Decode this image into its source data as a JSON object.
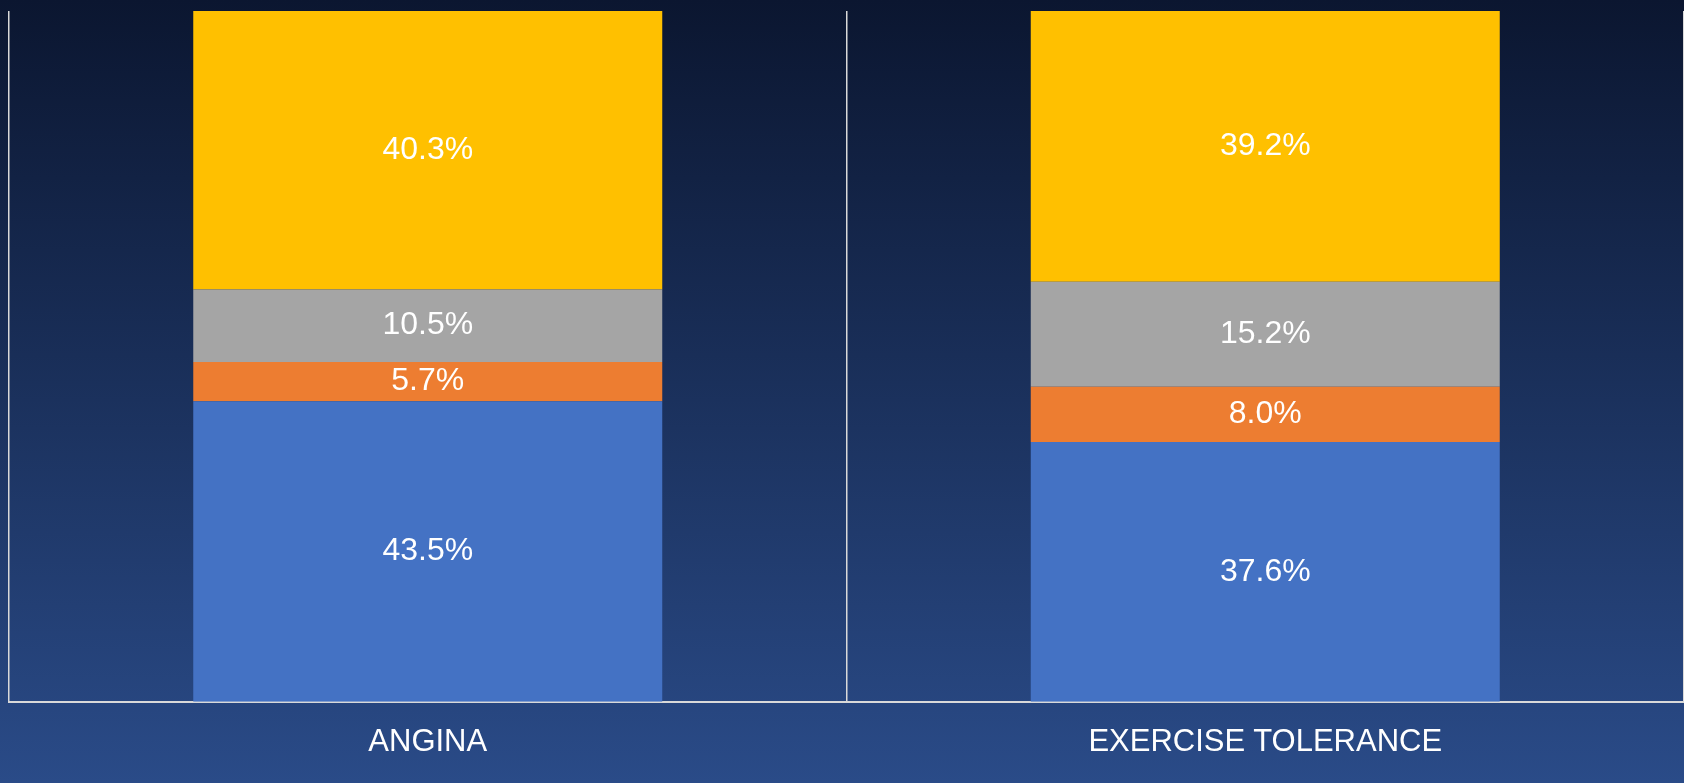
{
  "chart_data": {
    "type": "bar",
    "stacked": true,
    "categories": [
      "ANGINA",
      "EXERCISE TOLERANCE"
    ],
    "ylim": [
      0,
      100
    ],
    "tick_labels": "x",
    "grid": "x",
    "legend": false,
    "series": [
      {
        "color": "#4472c4",
        "values": [
          43.5,
          37.6
        ],
        "value_labels": [
          "43.5%",
          "37.6%"
        ]
      },
      {
        "color": "#ed7d31",
        "values": [
          5.7,
          8.0
        ],
        "value_labels": [
          "5.7%",
          "8.0%"
        ]
      },
      {
        "color": "#a5a5a5",
        "values": [
          10.5,
          15.2
        ],
        "value_labels": [
          "10.5%",
          "15.2%"
        ]
      },
      {
        "color": "#ffc000",
        "values": [
          40.3,
          39.2
        ],
        "value_labels": [
          "40.3%",
          "39.2%"
        ]
      }
    ]
  }
}
